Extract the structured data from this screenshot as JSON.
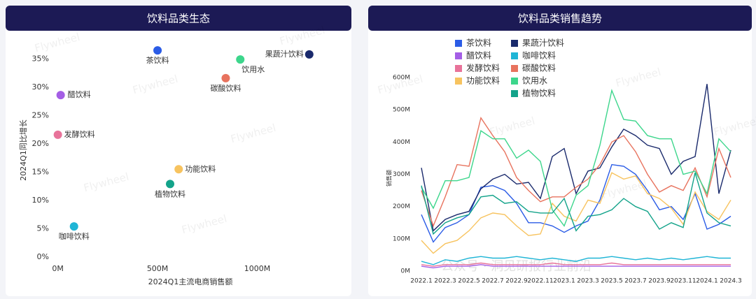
{
  "chart_data": [
    {
      "type": "scatter",
      "title": "饮料品类生态",
      "xlabel": "2024Q1主流电商销售额",
      "ylabel": "2024Q1同比增长",
      "points": [
        {
          "label": "茶饮料",
          "x": 500,
          "y": 36.5,
          "color": "#2b5ce6"
        },
        {
          "label": "醋饮料",
          "x": 14,
          "y": 28.6,
          "color": "#a45ee5"
        },
        {
          "label": "发酵饮料",
          "x": 0,
          "y": 21.6,
          "color": "#e8739a"
        },
        {
          "label": "咖啡饮料",
          "x": 81,
          "y": 5.4,
          "color": "#1fb5d6"
        },
        {
          "label": "植物饮料",
          "x": 563,
          "y": 12.9,
          "color": "#13a38a"
        },
        {
          "label": "功能饮料",
          "x": 606,
          "y": 15.5,
          "color": "#f7c35f"
        },
        {
          "label": "碳酸饮料",
          "x": 842,
          "y": 31.6,
          "color": "#e8735e"
        },
        {
          "label": "饮用水",
          "x": 915,
          "y": 34.9,
          "color": "#3dd68c"
        },
        {
          "label": "果蔬汁饮料",
          "x": 1261,
          "y": 35.8,
          "color": "#1a2a6c"
        }
      ],
      "xlim": [
        -220,
        1360
      ],
      "ylim": [
        -1.5,
        38
      ],
      "xticks": [
        {
          "value": 0,
          "label": "0M"
        },
        {
          "value": 500,
          "label": "500M"
        },
        {
          "value": 1000,
          "label": "1000M"
        }
      ],
      "yticks": [
        {
          "value": 0,
          "label": "0%"
        },
        {
          "value": 5,
          "label": "5%"
        },
        {
          "value": 10,
          "label": "10%"
        },
        {
          "value": 15,
          "label": "15%"
        },
        {
          "value": 20,
          "label": "20%"
        },
        {
          "value": 25,
          "label": "25%"
        },
        {
          "value": 30,
          "label": "30%"
        },
        {
          "value": 35,
          "label": "35%"
        }
      ]
    },
    {
      "type": "line",
      "title": "饮料品类销售趋势",
      "ylabel": "销售额",
      "categories": [
        "2022.1",
        null,
        "2022.3",
        null,
        "2022.5",
        null,
        "2022.7",
        null,
        "2022.9",
        null,
        "2022.11",
        null,
        "2023.1",
        null,
        "2023.3",
        null,
        "2023.5",
        null,
        "2023.7",
        null,
        "2023.9",
        null,
        "2023.11",
        null,
        "2024.1",
        null,
        "2024.3"
      ],
      "ylim": [
        0,
        600
      ],
      "yticks": [
        {
          "value": 0,
          "label": "0M"
        },
        {
          "value": 100,
          "label": "100M"
        },
        {
          "value": 200,
          "label": "200M"
        },
        {
          "value": 300,
          "label": "300M"
        },
        {
          "value": 400,
          "label": "400M"
        },
        {
          "value": 500,
          "label": "500M"
        },
        {
          "value": 600,
          "label": "600M"
        }
      ],
      "series": [
        {
          "name": "茶饮料",
          "color": "#2b5ce6",
          "values": [
            175,
            90,
            135,
            150,
            175,
            260,
            265,
            250,
            210,
            150,
            150,
            140,
            120,
            140,
            155,
            220,
            330,
            325,
            300,
            250,
            190,
            200,
            160,
            240,
            130,
            145,
            170
          ]
        },
        {
          "name": "醋饮料",
          "color": "#a45ee5",
          "values": [
            15,
            10,
            15,
            15,
            15,
            20,
            15,
            15,
            15,
            15,
            15,
            15,
            15,
            15,
            15,
            15,
            15,
            15,
            15,
            15,
            15,
            15,
            15,
            15,
            15,
            15,
            15
          ]
        },
        {
          "name": "发酵饮料",
          "color": "#e8739a",
          "values": [
            20,
            15,
            20,
            20,
            20,
            25,
            20,
            20,
            20,
            20,
            20,
            25,
            20,
            20,
            20,
            20,
            25,
            20,
            20,
            20,
            20,
            20,
            20,
            20,
            20,
            20,
            20
          ]
        },
        {
          "name": "功能饮料",
          "color": "#f7c35f",
          "values": [
            95,
            55,
            85,
            95,
            125,
            165,
            180,
            175,
            140,
            110,
            115,
            210,
            170,
            155,
            220,
            210,
            305,
            285,
            295,
            240,
            225,
            195,
            145,
            245,
            185,
            160,
            220
          ]
        },
        {
          "name": "果蔬汁饮料",
          "color": "#1a2a6c",
          "values": [
            320,
            125,
            160,
            175,
            185,
            255,
            285,
            300,
            270,
            275,
            225,
            355,
            380,
            240,
            310,
            320,
            385,
            440,
            420,
            390,
            380,
            300,
            340,
            355,
            580,
            240,
            375
          ]
        },
        {
          "name": "咖啡饮料",
          "color": "#1fb5d6",
          "values": [
            30,
            20,
            35,
            30,
            40,
            45,
            40,
            40,
            45,
            40,
            35,
            40,
            35,
            30,
            40,
            40,
            45,
            40,
            35,
            40,
            35,
            40,
            35,
            40,
            45,
            40,
            40
          ]
        },
        {
          "name": "碳酸饮料",
          "color": "#e8735e",
          "values": [
            250,
            140,
            230,
            330,
            325,
            475,
            420,
            370,
            290,
            250,
            215,
            230,
            230,
            260,
            285,
            330,
            400,
            420,
            370,
            300,
            245,
            265,
            250,
            320,
            230,
            380,
            290
          ]
        },
        {
          "name": "饮用水",
          "color": "#3dd68c",
          "values": [
            260,
            195,
            280,
            280,
            290,
            435,
            410,
            410,
            350,
            375,
            340,
            190,
            140,
            235,
            265,
            390,
            560,
            470,
            465,
            420,
            410,
            410,
            300,
            310,
            240,
            410,
            370
          ]
        },
        {
          "name": "植物饮料",
          "color": "#13a38a",
          "values": [
            265,
            115,
            150,
            165,
            175,
            230,
            235,
            210,
            215,
            185,
            180,
            180,
            225,
            125,
            170,
            175,
            190,
            225,
            200,
            185,
            130,
            150,
            135,
            305,
            180,
            150,
            140
          ]
        }
      ]
    }
  ],
  "watermark": "Flywheel",
  "footer_watermark": "公众号 · 洞见研报行业前沿"
}
